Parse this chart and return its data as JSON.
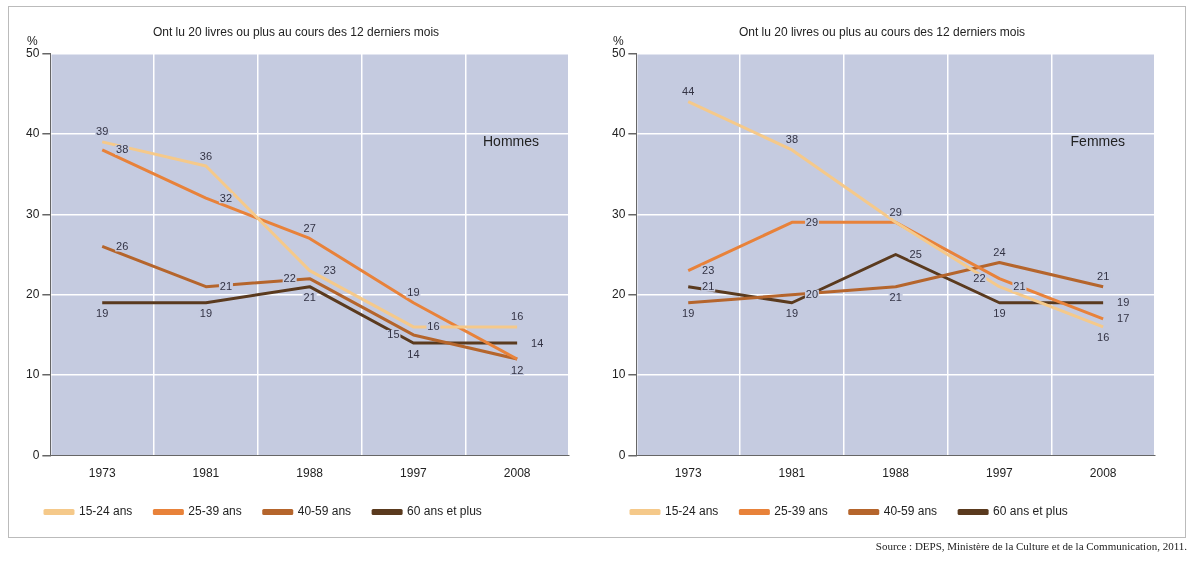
{
  "chart_data": [
    {
      "type": "line",
      "title": "Ont lu 20 livres ou plus au cours des 12 derniers mois",
      "ylabel": "%",
      "categories": [
        "1973",
        "1981",
        "1988",
        "1997",
        "2008"
      ],
      "ylim": [
        0,
        50
      ],
      "yticks": [
        0,
        10,
        20,
        30,
        40,
        50
      ],
      "grid": true,
      "legend": "bottom",
      "marker": "none",
      "annotations": [
        "Hommes"
      ],
      "series": [
        {
          "name": "15-24 ans",
          "color": "#f5c98a",
          "values": [
            39,
            36,
            23,
            16,
            16
          ],
          "value_labels": [
            "39",
            "36",
            "23",
            "16",
            "16"
          ]
        },
        {
          "name": "25-39 ans",
          "color": "#e8823a",
          "values": [
            38,
            32,
            27,
            19,
            12
          ],
          "value_labels": [
            "38",
            "32",
            "27",
            "19",
            "12"
          ]
        },
        {
          "name": "40-59 ans",
          "color": "#b5652c",
          "values": [
            26,
            21,
            22,
            15,
            12
          ],
          "value_labels": [
            "26",
            "21",
            "22",
            "15",
            null
          ]
        },
        {
          "name": "60 ans et plus",
          "color": "#5a3a1e",
          "values": [
            19,
            19,
            21,
            14,
            14
          ],
          "value_labels": [
            "19",
            "19",
            "21",
            "14",
            "14"
          ]
        }
      ]
    },
    {
      "type": "line",
      "title": "Ont lu 20 livres ou plus au cours des 12 derniers mois",
      "ylabel": "%",
      "categories": [
        "1973",
        "1981",
        "1988",
        "1997",
        "2008"
      ],
      "ylim": [
        0,
        50
      ],
      "yticks": [
        0,
        10,
        20,
        30,
        40,
        50
      ],
      "grid": true,
      "legend": "bottom",
      "marker": "none",
      "annotations": [
        "Femmes",
        "Source : DEPS, Ministère de la Culture et de la Communication, 2011."
      ],
      "series": [
        {
          "name": "15-24 ans",
          "color": "#f5c98a",
          "values": [
            44,
            38,
            29,
            21,
            16
          ],
          "value_labels": [
            "44",
            "38",
            null,
            "21",
            "16"
          ]
        },
        {
          "name": "25-39 ans",
          "color": "#e8823a",
          "values": [
            23,
            29,
            29,
            22,
            17
          ],
          "value_labels": [
            "23",
            "29",
            "29",
            "22",
            "17"
          ]
        },
        {
          "name": "40-59 ans",
          "color": "#b5652c",
          "values": [
            19,
            20,
            21,
            24,
            21
          ],
          "value_labels": [
            "19",
            "20",
            "21",
            "24",
            "21"
          ]
        },
        {
          "name": "60 ans et plus",
          "color": "#5a3a1e",
          "values": [
            21,
            19,
            25,
            19,
            19
          ],
          "value_labels": [
            "21",
            "19",
            "25",
            "19",
            "19"
          ]
        }
      ]
    }
  ]
}
